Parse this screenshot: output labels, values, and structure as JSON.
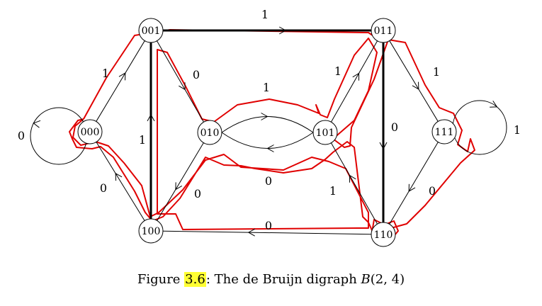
{
  "diagram": {
    "nodes": [
      {
        "id": "000",
        "label": "000"
      },
      {
        "id": "001",
        "label": "001"
      },
      {
        "id": "010",
        "label": "010"
      },
      {
        "id": "011",
        "label": "011"
      },
      {
        "id": "100",
        "label": "100"
      },
      {
        "id": "101",
        "label": "101"
      },
      {
        "id": "110",
        "label": "110"
      },
      {
        "id": "111",
        "label": "111"
      }
    ],
    "edges": [
      {
        "from": "000",
        "to": "000",
        "label": "0"
      },
      {
        "from": "000",
        "to": "001",
        "label": "1"
      },
      {
        "from": "001",
        "to": "011",
        "label": "1"
      },
      {
        "from": "001",
        "to": "010",
        "label": "0"
      },
      {
        "from": "010",
        "to": "101",
        "label": "1"
      },
      {
        "from": "101",
        "to": "010",
        "label": "0"
      },
      {
        "from": "010",
        "to": "100",
        "label": "0"
      },
      {
        "from": "100",
        "to": "001",
        "label": "1"
      },
      {
        "from": "100",
        "to": "000",
        "label": "0"
      },
      {
        "from": "101",
        "to": "011",
        "label": "1"
      },
      {
        "from": "110",
        "to": "101",
        "label": "1"
      },
      {
        "from": "011",
        "to": "111",
        "label": "1"
      },
      {
        "from": "011",
        "to": "110",
        "label": "0"
      },
      {
        "from": "111",
        "to": "111",
        "label": "1"
      },
      {
        "from": "111",
        "to": "110",
        "label": "0"
      },
      {
        "from": "110",
        "to": "100",
        "label": "0"
      }
    ],
    "colors": {
      "cycle": "#e00000",
      "caption_highlight": "#ffff33"
    }
  },
  "caption": {
    "prefix": "Figure ",
    "number": "3.6",
    "text": ": The de Bruijn digraph ",
    "math": "B",
    "args": "(2, 4)"
  }
}
